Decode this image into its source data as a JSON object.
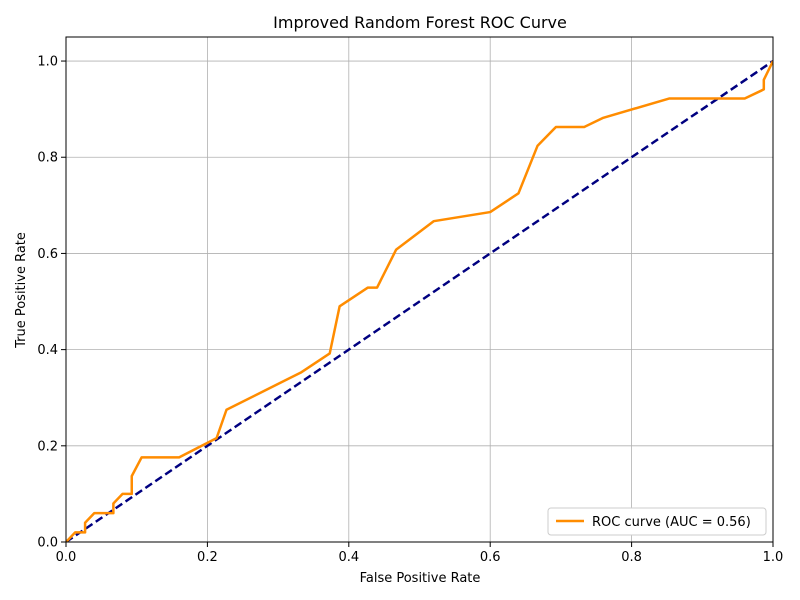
{
  "chart_data": {
    "type": "line",
    "title": "Improved Random Forest ROC Curve",
    "xlabel": "False Positive Rate",
    "ylabel": "True Positive Rate",
    "xlim": [
      0.0,
      1.0
    ],
    "ylim": [
      0.0,
      1.05
    ],
    "xticks": [
      0.0,
      0.2,
      0.4,
      0.6,
      0.8,
      1.0
    ],
    "yticks": [
      0.0,
      0.2,
      0.4,
      0.6,
      0.8,
      1.0
    ],
    "xtick_labels": [
      "0.0",
      "0.2",
      "0.4",
      "0.6",
      "0.8",
      "1.0"
    ],
    "ytick_labels": [
      "0.0",
      "0.2",
      "0.4",
      "0.6",
      "0.8",
      "1.0"
    ],
    "grid": true,
    "legend_position": "lower-right",
    "series": [
      {
        "name": "ROC curve (AUC = 0.56)",
        "color": "#ff8c00",
        "style": "solid",
        "x": [
          0.0,
          0.0,
          0.013,
          0.027,
          0.027,
          0.04,
          0.053,
          0.067,
          0.067,
          0.08,
          0.093,
          0.093,
          0.107,
          0.16,
          0.213,
          0.227,
          0.28,
          0.333,
          0.373,
          0.387,
          0.427,
          0.44,
          0.467,
          0.52,
          0.6,
          0.64,
          0.667,
          0.693,
          0.733,
          0.76,
          0.853,
          0.96,
          0.987,
          0.987,
          1.0
        ],
        "y": [
          0.0,
          0.0,
          0.02,
          0.02,
          0.04,
          0.06,
          0.06,
          0.06,
          0.08,
          0.1,
          0.1,
          0.137,
          0.176,
          0.176,
          0.216,
          0.275,
          0.314,
          0.353,
          0.392,
          0.49,
          0.529,
          0.529,
          0.608,
          0.667,
          0.686,
          0.725,
          0.824,
          0.863,
          0.863,
          0.882,
          0.922,
          0.922,
          0.941,
          0.961,
          1.0
        ]
      },
      {
        "name": "",
        "color": "#000080",
        "style": "dashed",
        "x": [
          0.0,
          1.0
        ],
        "y": [
          0.0,
          1.0
        ]
      }
    ]
  }
}
